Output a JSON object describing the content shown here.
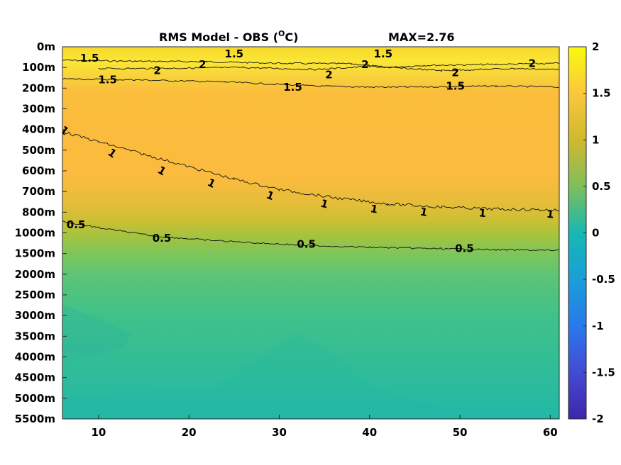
{
  "chart_data": {
    "type": "heatmap",
    "title_main": "RMS Model - OBS (",
    "title_sup": "O",
    "title_end": "C)",
    "title_max": "MAX=2.76",
    "x_ticks": [
      10,
      20,
      30,
      40,
      50,
      60
    ],
    "x_tick_labels": [
      "10",
      "20",
      "30",
      "40",
      "50",
      "60"
    ],
    "xlim": [
      6,
      61
    ],
    "y_tick_labels": [
      "0m",
      "100m",
      "200m",
      "300m",
      "400m",
      "500m",
      "600m",
      "700m",
      "800m",
      "1000m",
      "1500m",
      "2000m",
      "2500m",
      "3000m",
      "3500m",
      "4000m",
      "4500m",
      "5000m",
      "5500m"
    ],
    "colorbar": {
      "range": [
        -2,
        2
      ],
      "ticks": [
        2,
        1.5,
        1,
        0.5,
        0,
        -0.5,
        -1,
        -1.5,
        -2
      ],
      "tick_labels": [
        "2",
        "1.5",
        "1",
        "0.5",
        "0",
        "-0.5",
        "-1",
        "-1.5",
        "-2"
      ],
      "colormap": "parula"
    },
    "contours": [
      {
        "level": "1.5",
        "depth_index": [
          [
            6,
            0.65
          ],
          [
            14,
            0.7
          ],
          [
            22,
            0.72
          ],
          [
            30,
            0.8
          ],
          [
            38,
            0.82
          ],
          [
            42,
            1.0
          ],
          [
            46,
            0.9
          ],
          [
            54,
            0.85
          ],
          [
            61,
            0.8
          ]
        ]
      },
      {
        "level": "1.5",
        "depth_index": [
          [
            6,
            1.55
          ],
          [
            14,
            1.6
          ],
          [
            24,
            1.7
          ],
          [
            34,
            1.9
          ],
          [
            40,
            1.95
          ],
          [
            44,
            1.95
          ],
          [
            54,
            1.9
          ],
          [
            61,
            1.95
          ]
        ]
      },
      {
        "level": "2",
        "depth_index": [
          [
            10,
            1.05
          ],
          [
            16,
            1.05
          ],
          [
            26,
            1.0
          ],
          [
            34,
            1.1
          ],
          [
            40,
            0.95
          ],
          [
            48,
            1.15
          ],
          [
            56,
            1.05
          ],
          [
            61,
            1.1
          ]
        ]
      },
      {
        "level": "1",
        "depth_index": [
          [
            6,
            4.1
          ],
          [
            10,
            4.6
          ],
          [
            15,
            5.2
          ],
          [
            20,
            5.8
          ],
          [
            25,
            6.4
          ],
          [
            30,
            6.9
          ],
          [
            36,
            7.3
          ],
          [
            42,
            7.6
          ],
          [
            48,
            7.75
          ],
          [
            54,
            7.85
          ],
          [
            61,
            7.9
          ]
        ]
      },
      {
        "level": "0.5",
        "depth_index": [
          [
            6,
            8.45
          ],
          [
            10,
            8.75
          ],
          [
            16,
            9.15
          ],
          [
            22,
            9.35
          ],
          [
            28,
            9.5
          ],
          [
            34,
            9.62
          ],
          [
            40,
            9.7
          ],
          [
            48,
            9.77
          ],
          [
            54,
            9.82
          ],
          [
            61,
            9.85
          ]
        ]
      }
    ],
    "contour_labels": [
      {
        "text": "1.5",
        "x": 9.0,
        "depth_index": 0.55,
        "angle": 0
      },
      {
        "text": "1.5",
        "x": 25.0,
        "depth_index": 0.35,
        "angle": 0
      },
      {
        "text": "1.5",
        "x": 41.5,
        "depth_index": 0.35,
        "angle": 0
      },
      {
        "text": "2",
        "x": 16.5,
        "depth_index": 1.15,
        "angle": 0
      },
      {
        "text": "2",
        "x": 21.5,
        "depth_index": 0.85,
        "angle": 0
      },
      {
        "text": "2",
        "x": 35.5,
        "depth_index": 1.35,
        "angle": 0
      },
      {
        "text": "2",
        "x": 39.5,
        "depth_index": 0.85,
        "angle": 0
      },
      {
        "text": "2",
        "x": 49.5,
        "depth_index": 1.25,
        "angle": 0
      },
      {
        "text": "2",
        "x": 58.0,
        "depth_index": 0.8,
        "angle": 0
      },
      {
        "text": "1.5",
        "x": 11.0,
        "depth_index": 1.6,
        "angle": 0
      },
      {
        "text": "1.5",
        "x": 31.5,
        "depth_index": 1.95,
        "angle": 0
      },
      {
        "text": "1.5",
        "x": 49.5,
        "depth_index": 1.9,
        "angle": 0
      },
      {
        "text": "1",
        "x": 6.2,
        "depth_index": 4.05,
        "angle": 40
      },
      {
        "text": "1",
        "x": 11.5,
        "depth_index": 5.15,
        "angle": 35
      },
      {
        "text": "1",
        "x": 17.0,
        "depth_index": 6.0,
        "angle": 30
      },
      {
        "text": "1",
        "x": 22.5,
        "depth_index": 6.6,
        "angle": 25
      },
      {
        "text": "1",
        "x": 29.0,
        "depth_index": 7.2,
        "angle": 20
      },
      {
        "text": "1",
        "x": 35.0,
        "depth_index": 7.6,
        "angle": 15
      },
      {
        "text": "1",
        "x": 40.5,
        "depth_index": 7.85,
        "angle": 10
      },
      {
        "text": "1",
        "x": 46.0,
        "depth_index": 8.0,
        "angle": 10
      },
      {
        "text": "1",
        "x": 52.5,
        "depth_index": 8.05,
        "angle": 5
      },
      {
        "text": "1",
        "x": 60.0,
        "depth_index": 8.1,
        "angle": 5
      },
      {
        "text": "0.5",
        "x": 7.5,
        "depth_index": 8.6,
        "angle": 0
      },
      {
        "text": "0.5",
        "x": 17.0,
        "depth_index": 9.25,
        "angle": 0
      },
      {
        "text": "0.5",
        "x": 33.0,
        "depth_index": 9.55,
        "angle": 0
      },
      {
        "text": "0.5",
        "x": 50.5,
        "depth_index": 9.75,
        "angle": 0
      }
    ]
  }
}
